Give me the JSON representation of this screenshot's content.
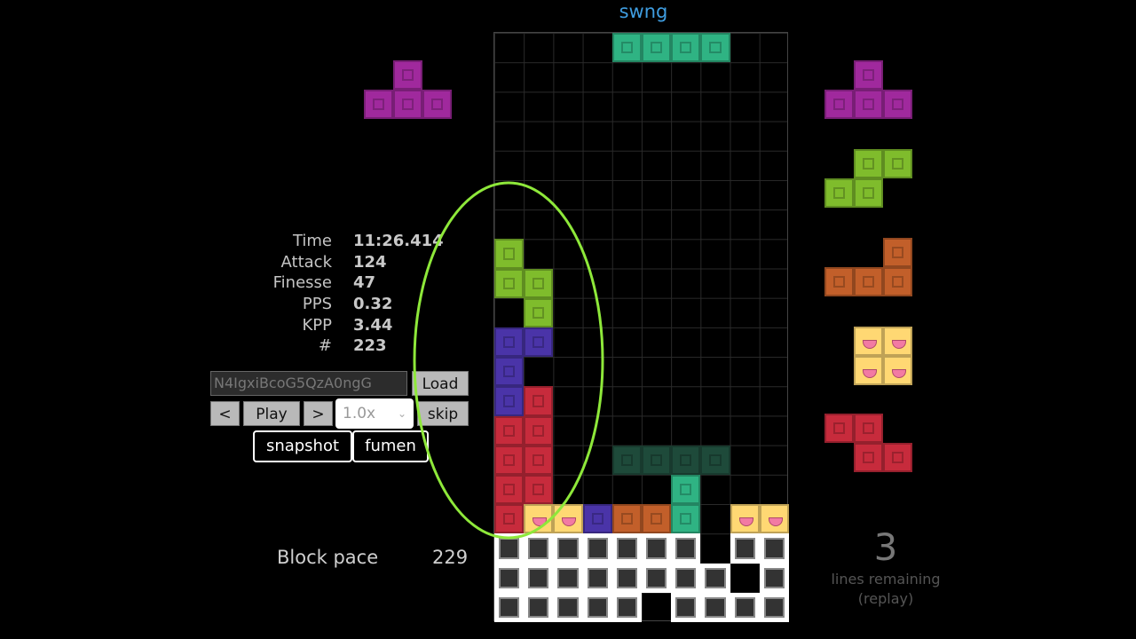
{
  "player": {
    "name": "swng"
  },
  "colors": {
    "T": "#a0299d",
    "S": "#7fbc2c",
    "L": "#c25f2a",
    "O": "#f9d27a",
    "Z": "#c72b3c",
    "I": "#2fb383",
    "J": "#4a34a8",
    "ghost": "#1e4a3a",
    "garbage": "#ffffff",
    "title": "#3f9de0",
    "highlight": "#8ee83a"
  },
  "hold": {
    "piece": "T",
    "icon": "hold-piece-icon"
  },
  "queue": [
    "T",
    "S",
    "L",
    "O",
    "Z"
  ],
  "stats": [
    {
      "label": "Time",
      "value": "11:26.414"
    },
    {
      "label": "Attack",
      "value": "124"
    },
    {
      "label": "Finesse",
      "value": "47"
    },
    {
      "label": "PPS",
      "value": "0.32"
    },
    {
      "label": "KPP",
      "value": "3.44"
    },
    {
      "label": "#",
      "value": "223"
    }
  ],
  "controls": {
    "replay_code": "N4IgxiBcoG5QzA0ngG",
    "load_label": "Load",
    "prev_label": "<",
    "play_label": "Play",
    "next_label": ">",
    "speed_value": "1.0x",
    "skip_label": "skip",
    "snapshot_label": "snapshot",
    "fumen_label": "fumen"
  },
  "pace": {
    "label": "Block pace",
    "value": "229"
  },
  "lines": {
    "remaining": "3",
    "label": "lines remaining",
    "mode": "(replay)"
  },
  "board": {
    "columns": 10,
    "rows": 20,
    "active_piece": {
      "type": "I",
      "cells": [
        [
          0,
          4
        ],
        [
          0,
          5
        ],
        [
          0,
          6
        ],
        [
          0,
          7
        ]
      ]
    },
    "ghost_piece": {
      "type": "ghost",
      "cells": [
        [
          14,
          4
        ],
        [
          14,
          5
        ],
        [
          14,
          6
        ],
        [
          14,
          7
        ]
      ]
    },
    "cells": [
      {
        "r": 7,
        "c": 0,
        "t": "S"
      },
      {
        "r": 8,
        "c": 0,
        "t": "S"
      },
      {
        "r": 8,
        "c": 1,
        "t": "S"
      },
      {
        "r": 9,
        "c": 1,
        "t": "S"
      },
      {
        "r": 10,
        "c": 0,
        "t": "J"
      },
      {
        "r": 10,
        "c": 1,
        "t": "J"
      },
      {
        "r": 11,
        "c": 0,
        "t": "J"
      },
      {
        "r": 12,
        "c": 0,
        "t": "J"
      },
      {
        "r": 12,
        "c": 1,
        "t": "Z"
      },
      {
        "r": 13,
        "c": 0,
        "t": "Z"
      },
      {
        "r": 13,
        "c": 1,
        "t": "Z"
      },
      {
        "r": 14,
        "c": 0,
        "t": "Z"
      },
      {
        "r": 14,
        "c": 1,
        "t": "Z"
      },
      {
        "r": 15,
        "c": 0,
        "t": "Z"
      },
      {
        "r": 15,
        "c": 1,
        "t": "Z"
      },
      {
        "r": 15,
        "c": 6,
        "t": "I"
      },
      {
        "r": 16,
        "c": 0,
        "t": "Z"
      },
      {
        "r": 16,
        "c": 1,
        "t": "O"
      },
      {
        "r": 16,
        "c": 2,
        "t": "O"
      },
      {
        "r": 16,
        "c": 3,
        "t": "J"
      },
      {
        "r": 16,
        "c": 4,
        "t": "L"
      },
      {
        "r": 16,
        "c": 5,
        "t": "L"
      },
      {
        "r": 16,
        "c": 6,
        "t": "I"
      },
      {
        "r": 16,
        "c": 8,
        "t": "O"
      },
      {
        "r": 16,
        "c": 9,
        "t": "O"
      },
      {
        "r": 17,
        "c": 0,
        "t": "G"
      },
      {
        "r": 17,
        "c": 1,
        "t": "G"
      },
      {
        "r": 17,
        "c": 2,
        "t": "G"
      },
      {
        "r": 17,
        "c": 3,
        "t": "G"
      },
      {
        "r": 17,
        "c": 4,
        "t": "G"
      },
      {
        "r": 17,
        "c": 5,
        "t": "G"
      },
      {
        "r": 17,
        "c": 6,
        "t": "G"
      },
      {
        "r": 17,
        "c": 8,
        "t": "G"
      },
      {
        "r": 17,
        "c": 9,
        "t": "G"
      },
      {
        "r": 18,
        "c": 0,
        "t": "G"
      },
      {
        "r": 18,
        "c": 1,
        "t": "G"
      },
      {
        "r": 18,
        "c": 2,
        "t": "G"
      },
      {
        "r": 18,
        "c": 3,
        "t": "G"
      },
      {
        "r": 18,
        "c": 4,
        "t": "G"
      },
      {
        "r": 18,
        "c": 5,
        "t": "G"
      },
      {
        "r": 18,
        "c": 6,
        "t": "G"
      },
      {
        "r": 18,
        "c": 7,
        "t": "G"
      },
      {
        "r": 18,
        "c": 9,
        "t": "G"
      },
      {
        "r": 19,
        "c": 0,
        "t": "G"
      },
      {
        "r": 19,
        "c": 1,
        "t": "G"
      },
      {
        "r": 19,
        "c": 2,
        "t": "G"
      },
      {
        "r": 19,
        "c": 3,
        "t": "G"
      },
      {
        "r": 19,
        "c": 4,
        "t": "G"
      },
      {
        "r": 19,
        "c": 6,
        "t": "G"
      },
      {
        "r": 19,
        "c": 7,
        "t": "G"
      },
      {
        "r": 19,
        "c": 8,
        "t": "G"
      },
      {
        "r": 19,
        "c": 9,
        "t": "G"
      }
    ]
  }
}
